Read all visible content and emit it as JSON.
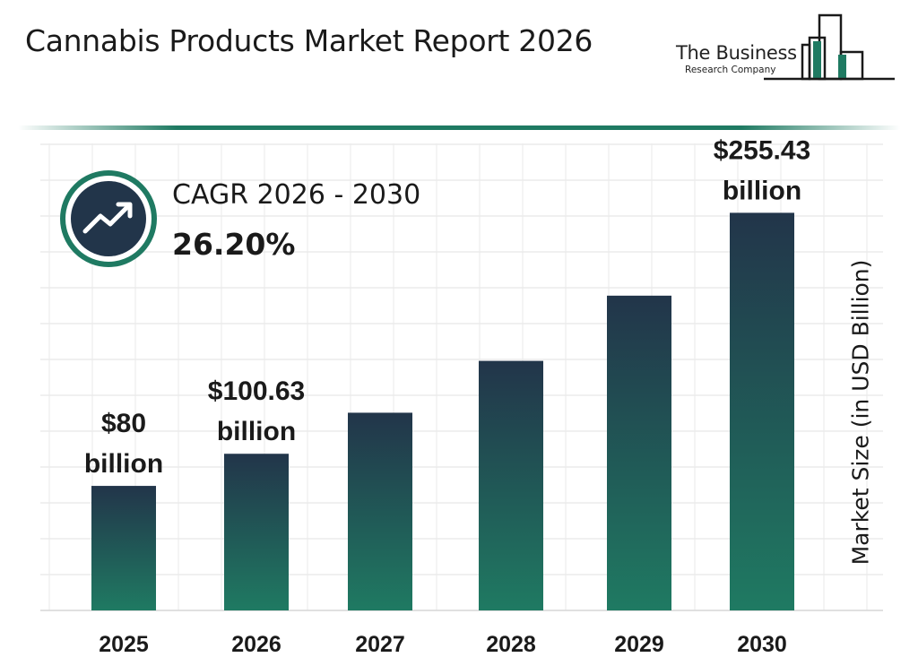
{
  "header": {
    "title": "Cannabis Products Market Report 2026",
    "logo_line1": "The Business",
    "logo_line2": "Research Company"
  },
  "cagr": {
    "label": "CAGR 2026 - 2030",
    "value": "26.20%",
    "icon": "trend-up-arrow-icon"
  },
  "colors": {
    "bar_top": "#22354a",
    "bar_bottom": "#1f7a62",
    "accent": "#1f7a62",
    "text": "#1a1a1a"
  },
  "chart_data": {
    "type": "bar",
    "categories": [
      "2025",
      "2026",
      "2027",
      "2028",
      "2029",
      "2030"
    ],
    "values": [
      80,
      100.63,
      127,
      160.3,
      202.2,
      255.43
    ],
    "data_labels": [
      [
        "$80",
        "billion"
      ],
      [
        "$100.63",
        "billion"
      ],
      null,
      null,
      null,
      [
        "$255.43",
        "billion"
      ]
    ],
    "title": "Cannabis Products Market Report 2026",
    "xlabel": "",
    "ylabel": "Market Size (in USD Billion)",
    "ylim": [
      0,
      300
    ],
    "grid": true,
    "legend": "none"
  }
}
